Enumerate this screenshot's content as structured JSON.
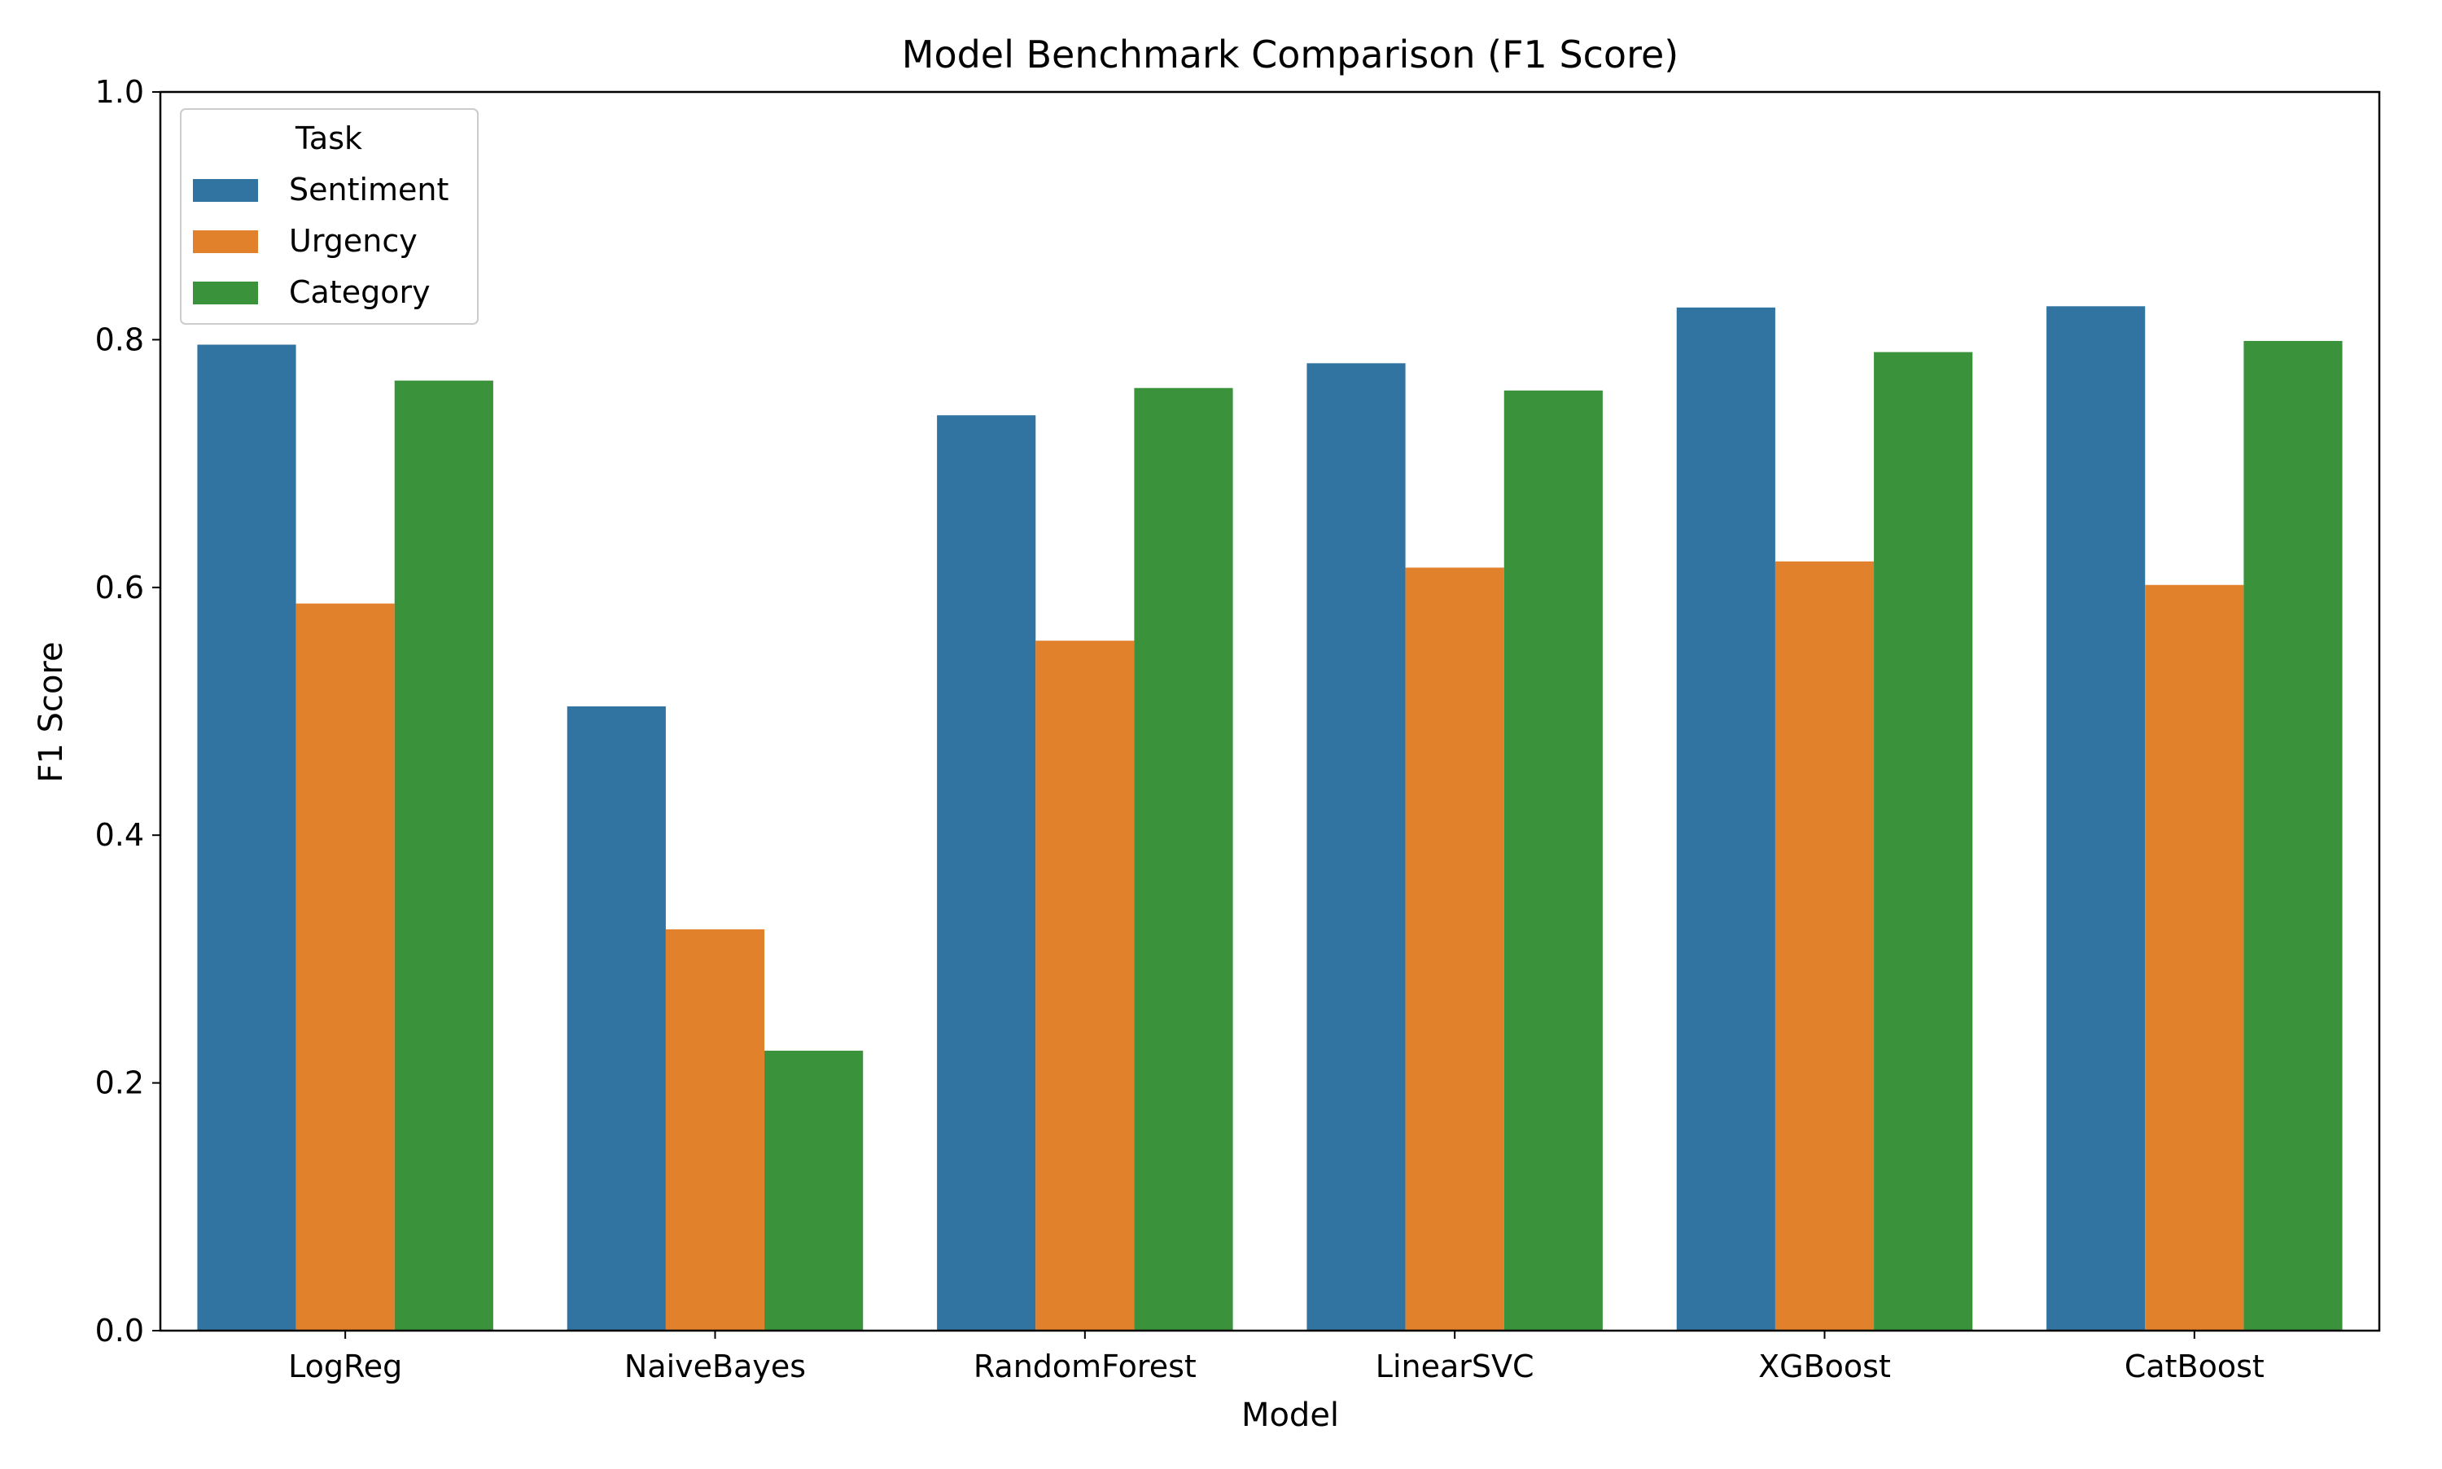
{
  "chart_data": {
    "type": "bar",
    "title": "Model Benchmark Comparison (F1 Score)",
    "xlabel": "Model",
    "ylabel": "F1 Score",
    "ylim": [
      0,
      1.0
    ],
    "yticks": [
      "0.0",
      "0.2",
      "0.4",
      "0.6",
      "0.8",
      "1.0"
    ],
    "categories": [
      "LogReg",
      "NaiveBayes",
      "RandomForest",
      "LinearSVC",
      "XGBoost",
      "CatBoost"
    ],
    "legend": {
      "title": "Task",
      "placement": "top-left"
    },
    "series": [
      {
        "name": "Sentiment",
        "color": "#3274a1",
        "values": [
          0.796,
          0.504,
          0.739,
          0.781,
          0.826,
          0.827
        ]
      },
      {
        "name": "Urgency",
        "color": "#e1812c",
        "values": [
          0.587,
          0.324,
          0.557,
          0.616,
          0.621,
          0.602
        ]
      },
      {
        "name": "Category",
        "color": "#3a923a",
        "values": [
          0.767,
          0.226,
          0.761,
          0.759,
          0.79,
          0.799
        ]
      }
    ],
    "grid": false
  }
}
